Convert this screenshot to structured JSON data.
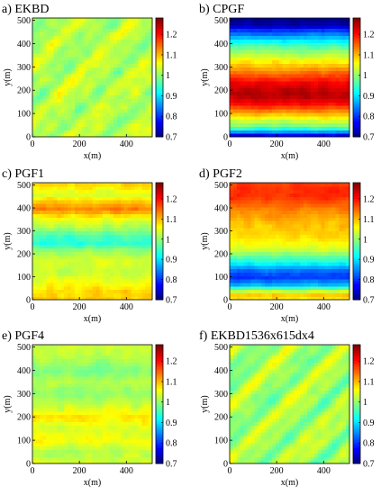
{
  "chart_data": [
    {
      "type": "heatmap",
      "title": "a) EKBD",
      "xlabel": "x(m)",
      "ylabel": "y(m)",
      "xlim": [
        0,
        510
      ],
      "ylim": [
        0,
        510
      ],
      "xticks": [
        "0",
        "200",
        "400"
      ],
      "yticks": [
        "0",
        "100",
        "200",
        "300",
        "400",
        "500"
      ],
      "colorbar": {
        "range": [
          0.7,
          1.28
        ],
        "ticks": [
          "0.7",
          "0.8",
          "0.9",
          "1",
          "1.1",
          "1.2"
        ]
      },
      "pattern": "diagonal",
      "mean_value": 1.02,
      "base": 1.02,
      "amp": 0.035,
      "noise": 0.035
    },
    {
      "type": "heatmap",
      "title": "b) CPGF",
      "xlabel": "x(m)",
      "ylabel": "y(m)",
      "xlim": [
        0,
        510
      ],
      "ylim": [
        0,
        510
      ],
      "xticks": [
        "0",
        "200",
        "400"
      ],
      "yticks": [
        "0",
        "100",
        "200",
        "300",
        "400",
        "500"
      ],
      "colorbar": {
        "range": [
          0.7,
          1.28
        ],
        "ticks": [
          "0.7",
          "0.8",
          "0.9",
          "1",
          "1.1",
          "1.2"
        ]
      },
      "pattern": "horizontal",
      "y_profile": [
        [
          0,
          0.72
        ],
        [
          20,
          0.85
        ],
        [
          45,
          0.98
        ],
        [
          90,
          1.08
        ],
        [
          140,
          1.2
        ],
        [
          180,
          1.25
        ],
        [
          230,
          1.22
        ],
        [
          280,
          1.14
        ],
        [
          330,
          1.06
        ],
        [
          380,
          0.98
        ],
        [
          420,
          0.9
        ],
        [
          460,
          0.8
        ],
        [
          480,
          0.73
        ],
        [
          510,
          0.7
        ]
      ],
      "noise": 0.025
    },
    {
      "type": "heatmap",
      "title": "c) PGF1",
      "xlabel": "x(m)",
      "ylabel": "y(m)",
      "xlim": [
        0,
        510
      ],
      "ylim": [
        0,
        510
      ],
      "xticks": [
        "0",
        "200",
        "400"
      ],
      "yticks": [
        "0",
        "100",
        "200",
        "300",
        "400",
        "500"
      ],
      "colorbar": {
        "range": [
          0.7,
          1.28
        ],
        "ticks": [
          "0.7",
          "0.8",
          "0.9",
          "1",
          "1.1",
          "1.2"
        ]
      },
      "pattern": "horizontal",
      "y_profile": [
        [
          0,
          1.09
        ],
        [
          40,
          1.08
        ],
        [
          90,
          1.05
        ],
        [
          120,
          1.03
        ],
        [
          170,
          1.04
        ],
        [
          215,
          1.0
        ],
        [
          245,
          0.94
        ],
        [
          280,
          0.96
        ],
        [
          320,
          1.02
        ],
        [
          360,
          1.06
        ],
        [
          395,
          1.14
        ],
        [
          420,
          1.11
        ],
        [
          460,
          1.04
        ],
        [
          490,
          1.07
        ],
        [
          510,
          1.09
        ]
      ],
      "noise": 0.03
    },
    {
      "type": "heatmap",
      "title": "d) PGF2",
      "xlabel": "x(m)",
      "ylabel": "y(m)",
      "xlim": [
        0,
        510
      ],
      "ylim": [
        0,
        510
      ],
      "xticks": [
        "0",
        "200",
        "400"
      ],
      "yticks": [
        "0",
        "100",
        "200",
        "300",
        "400",
        "500"
      ],
      "colorbar": {
        "range": [
          0.7,
          1.28
        ],
        "ticks": [
          "0.7",
          "0.8",
          "0.9",
          "1",
          "1.1",
          "1.2"
        ]
      },
      "pattern": "horizontal",
      "y_profile": [
        [
          0,
          1.06
        ],
        [
          20,
          1.1
        ],
        [
          40,
          1.02
        ],
        [
          70,
          0.86
        ],
        [
          100,
          0.8
        ],
        [
          130,
          0.84
        ],
        [
          170,
          0.94
        ],
        [
          220,
          1.04
        ],
        [
          280,
          1.08
        ],
        [
          340,
          1.1
        ],
        [
          400,
          1.14
        ],
        [
          450,
          1.18
        ],
        [
          490,
          1.18
        ],
        [
          510,
          1.17
        ]
      ],
      "noise": 0.025
    },
    {
      "type": "heatmap",
      "title": "e) PGF4",
      "xlabel": "x(m)",
      "ylabel": "y(m)",
      "xlim": [
        0,
        510
      ],
      "ylim": [
        0,
        510
      ],
      "xticks": [
        "0",
        "200",
        "400"
      ],
      "yticks": [
        "0",
        "100",
        "200",
        "300",
        "400",
        "500"
      ],
      "colorbar": {
        "range": [
          0.7,
          1.28
        ],
        "ticks": [
          "0.7",
          "0.8",
          "0.9",
          "1",
          "1.1",
          "1.2"
        ]
      },
      "pattern": "horizontal",
      "y_profile": [
        [
          0,
          1.04
        ],
        [
          50,
          1.02
        ],
        [
          100,
          1.06
        ],
        [
          150,
          1.04
        ],
        [
          200,
          1.08
        ],
        [
          240,
          1.04
        ],
        [
          300,
          1.0
        ],
        [
          350,
          1.02
        ],
        [
          400,
          0.99
        ],
        [
          450,
          1.02
        ],
        [
          510,
          1.03
        ]
      ],
      "noise": 0.03
    },
    {
      "type": "heatmap",
      "title": "f) EKBD1536x615dx4",
      "xlabel": "x(m)",
      "ylabel": "y(m)",
      "xlim": [
        0,
        510
      ],
      "ylim": [
        0,
        510
      ],
      "xticks": [
        "0",
        "200",
        "400"
      ],
      "yticks": [
        "0",
        "100",
        "200",
        "300",
        "400",
        "500"
      ],
      "colorbar": {
        "range": [
          0.7,
          1.28
        ],
        "ticks": [
          "0.7",
          "0.8",
          "0.9",
          "1",
          "1.1",
          "1.2"
        ]
      },
      "pattern": "diagonal",
      "mean_value": 1.02,
      "base": 1.01,
      "amp": 0.05,
      "noise": 0.025
    }
  ]
}
